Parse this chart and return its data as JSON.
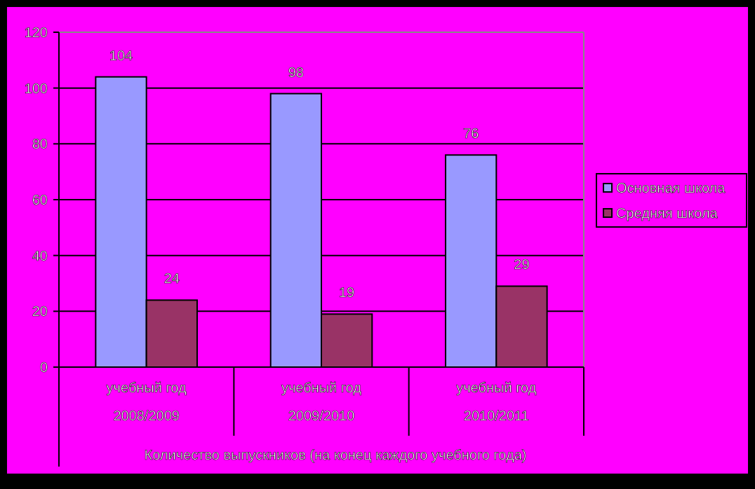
{
  "chart_data": {
    "type": "bar",
    "xlabel": "Количество выпускников (на конец каждого учебного года)",
    "categories": [
      "учебный год\n2008/2009",
      "учебный год\n2009/2010",
      "учебный год\n2010/2011"
    ],
    "series": [
      {
        "name": "Основная школа",
        "color": "#9999ff",
        "values": [
          104,
          98,
          76
        ]
      },
      {
        "name": "Средняя школа",
        "color": "#993366",
        "values": [
          24,
          19,
          29
        ]
      }
    ],
    "ylim": [
      0,
      120
    ],
    "yticks": [
      0,
      20,
      40,
      60,
      80,
      100,
      120
    ],
    "grid": "y",
    "legend": "right",
    "data_labels": true
  }
}
